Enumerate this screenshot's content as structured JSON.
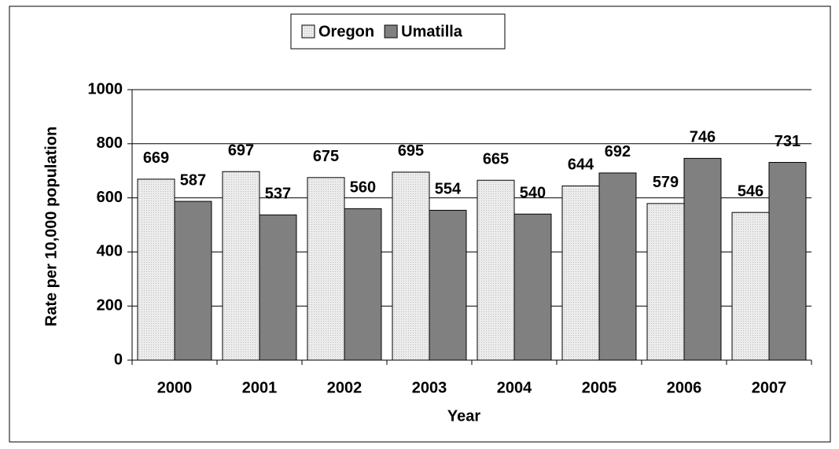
{
  "chart_data": {
    "type": "bar",
    "categories": [
      "2000",
      "2001",
      "2002",
      "2003",
      "2004",
      "2005",
      "2006",
      "2007"
    ],
    "series": [
      {
        "name": "Oregon",
        "color": "#e4e4e4",
        "values": [
          669,
          697,
          675,
          695,
          665,
          644,
          579,
          546
        ]
      },
      {
        "name": "Umatilla",
        "color": "#808080",
        "values": [
          587,
          537,
          560,
          554,
          540,
          692,
          746,
          731
        ]
      }
    ],
    "x_label": "Year",
    "y_label": "Rate per 10,000 population",
    "ylim": [
      0,
      1000
    ],
    "yticks": [
      0,
      200,
      400,
      600,
      800,
      1000
    ],
    "grid": true,
    "legend": "top"
  }
}
